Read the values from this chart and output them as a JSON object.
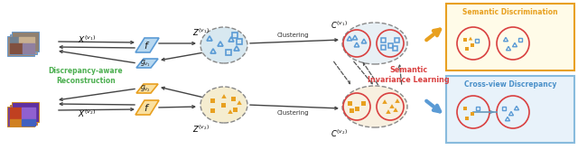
{
  "bg_color": "#ffffff",
  "orange": "#E8A020",
  "blue": "#5B9BD5",
  "red": "#D94040",
  "green": "#4CAF50",
  "title_top": "Semantic Discrimination",
  "title_bottom": "Cross-view Discrepancy",
  "label_recon": "Discrepancy-aware\nReconstruction",
  "label_inv": "Semantic\nInvariance Learning",
  "z1_bg": "#D8E8F0",
  "z2_bg": "#F5EDD0",
  "c1_bg": "#E8F0F5",
  "c2_bg": "#F8F0E0",
  "sd_bg": "#FFFBE8",
  "sd_border": "#E8A020",
  "cv_bg": "#E8F2FA",
  "cv_border": "#88BBDD"
}
